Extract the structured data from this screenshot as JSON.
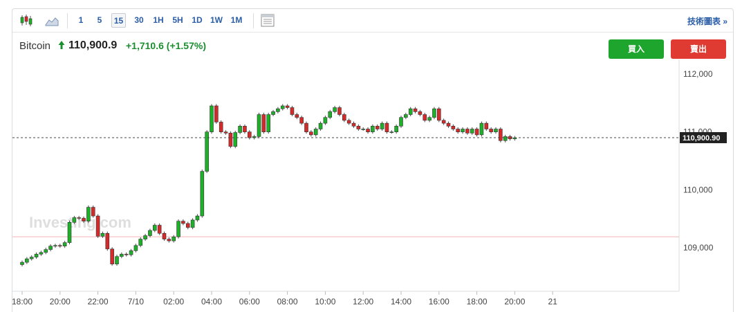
{
  "toolbar": {
    "intervals": [
      "1",
      "5",
      "15",
      "30",
      "1H",
      "5H",
      "1D",
      "1W",
      "1M"
    ],
    "active_interval": "15",
    "technical_link": "技術圖表 »"
  },
  "quote": {
    "name": "Bitcoin",
    "price": "110,900.9",
    "change": "+1,710.6",
    "change_pct": "(+1.57%)"
  },
  "actions": {
    "buy_label": "買入",
    "sell_label": "賣出"
  },
  "colors": {
    "up": "#1fb02a",
    "down": "#d42a2a",
    "accent": "#2a5da8"
  },
  "watermark": "Investing.com",
  "chart_data": {
    "type": "candlestick",
    "x_tick_labels": [
      "18:00",
      "20:00",
      "22:00",
      "7/10",
      "02:00",
      "04:00",
      "06:00",
      "08:00",
      "10:00",
      "12:00",
      "14:00",
      "16:00",
      "18:00",
      "20:00",
      "21"
    ],
    "y_ticks": [
      109000,
      110000,
      111000,
      112000
    ],
    "y_tick_labels": [
      "109,000",
      "110,000",
      "111,000",
      "112,000"
    ],
    "ylim": [
      108250,
      112250
    ],
    "last_price": 110900.9,
    "last_price_label": "110,900.90",
    "previous_close": 109190.3,
    "interval_minutes": 15,
    "close": [
      108750,
      108810,
      108840,
      108890,
      108920,
      108970,
      109030,
      109040,
      109030,
      109090,
      109440,
      109520,
      109510,
      109460,
      109700,
      109550,
      109200,
      109250,
      108980,
      108720,
      108850,
      108890,
      108880,
      108950,
      109040,
      109150,
      109210,
      109300,
      109390,
      109250,
      109150,
      109120,
      109190,
      109460,
      109420,
      109350,
      109480,
      109550,
      110320,
      111000,
      111450,
      111170,
      111000,
      110980,
      110750,
      110990,
      111100,
      111000,
      110900,
      110920,
      111300,
      111000,
      111300,
      111350,
      111400,
      111450,
      111420,
      111300,
      111250,
      111150,
      111000,
      110950,
      111050,
      111150,
      111250,
      111350,
      111420,
      111300,
      111200,
      111150,
      111100,
      111050,
      111050,
      111000,
      111100,
      111050,
      111150,
      111000,
      111000,
      111100,
      111250,
      111300,
      111400,
      111350,
      111300,
      111200,
      111250,
      111400,
      111200,
      111150,
      111100,
      111050,
      111000,
      111050,
      110980,
      111050,
      110950,
      111150,
      111050,
      111000,
      111050,
      110850,
      110920,
      110880,
      110900
    ]
  }
}
